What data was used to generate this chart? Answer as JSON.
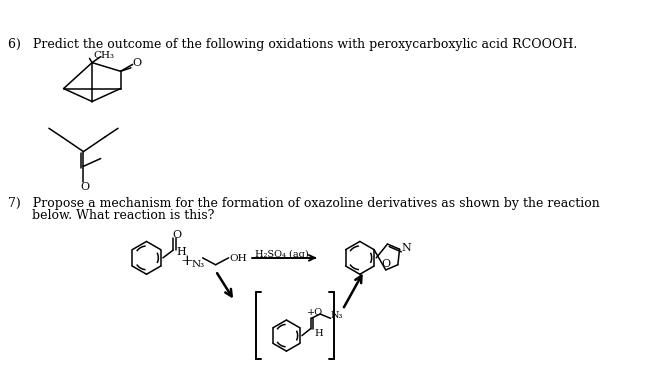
{
  "bg_color": "#ffffff",
  "text_color": "#000000",
  "figsize": [
    6.61,
    3.87
  ],
  "dpi": 100,
  "q6_text": "6)   Predict the outcome of the following oxidations with peroxycarboxylic acid RCOOOH.",
  "q7_line1": "7)   Propose a mechanism for the formation of oxazoline derivatives as shown by the reaction",
  "q7_line2": "      below. What reaction is this?",
  "h2so4_label": "H₂SO₄ (aq)",
  "ch3_label": "CH₃",
  "n3_label": "N₃",
  "oh_label": "OH",
  "font_size_main": 9.0,
  "font_size_small": 7.5,
  "font_size_tiny": 7.0,
  "lw": 1.1
}
